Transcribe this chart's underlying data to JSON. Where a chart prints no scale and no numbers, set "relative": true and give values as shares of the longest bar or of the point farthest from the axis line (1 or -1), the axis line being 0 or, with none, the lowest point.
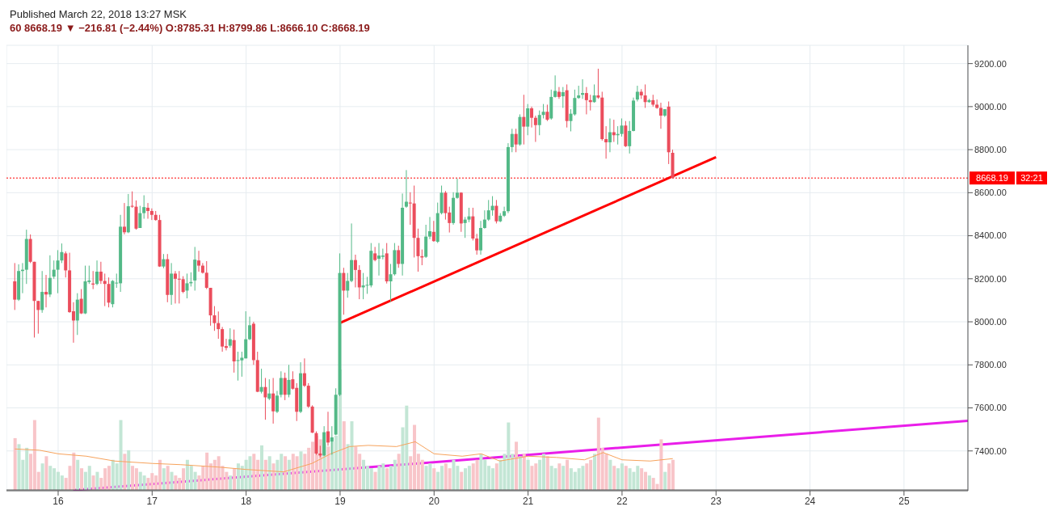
{
  "chart_data": [
    {
      "type": "candlestick",
      "title": "Published March 22, 2018 13:27 MSK",
      "subtitle": "60  8668.19 ▼ −216.81 (−2.44%) O:8785.31 H:8799.86 L:8666.10 C:8668.19",
      "x": [
        15.5417,
        15.5833,
        15.625,
        15.6667,
        15.7083,
        15.75,
        15.7917,
        15.8333,
        15.875,
        15.9167,
        15.9583,
        16.0,
        16.0417,
        16.0833,
        16.125,
        16.1667,
        16.2083,
        16.25,
        16.2917,
        16.3333,
        16.375,
        16.4167,
        16.4583,
        16.5,
        16.5417,
        16.5833,
        16.625,
        16.6667,
        16.7083,
        16.75,
        16.7917,
        16.8333,
        16.875,
        16.9167,
        16.9583,
        17.0,
        17.0417,
        17.0833,
        17.125,
        17.1667,
        17.2083,
        17.25,
        17.2917,
        17.3333,
        17.375,
        17.4167,
        17.4583,
        17.5,
        17.5417,
        17.5833,
        17.625,
        17.6667,
        17.7083,
        17.75,
        17.7917,
        17.8333,
        17.875,
        17.9167,
        17.9583,
        18.0,
        18.0417,
        18.0833,
        18.125,
        18.1667,
        18.2083,
        18.25,
        18.2917,
        18.3333,
        18.375,
        18.4167,
        18.4583,
        18.5,
        18.5417,
        18.5833,
        18.625,
        18.6667,
        18.7083,
        18.75,
        18.7917,
        18.8333,
        18.875,
        18.9167,
        18.9583,
        19.0,
        19.0417,
        19.0833,
        19.125,
        19.1667,
        19.2083,
        19.25,
        19.2917,
        19.3333,
        19.375,
        19.4167,
        19.4583,
        19.5,
        19.5417,
        19.5833,
        19.625,
        19.6667,
        19.7083,
        19.75,
        19.7917,
        19.8333,
        19.875,
        19.9167,
        19.9583,
        20.0,
        20.0417,
        20.0833,
        20.125,
        20.1667,
        20.2083,
        20.25,
        20.2917,
        20.3333,
        20.375,
        20.4167,
        20.4583,
        20.5,
        20.5417,
        20.5833,
        20.625,
        20.6667,
        20.7083,
        20.75,
        20.7917,
        20.8333,
        20.875,
        20.9167,
        20.9583,
        21.0,
        21.0417,
        21.0833,
        21.125,
        21.1667,
        21.2083,
        21.25,
        21.2917,
        21.3333,
        21.375,
        21.4167,
        21.4583,
        21.5,
        21.5417,
        21.5833,
        21.625,
        21.6667,
        21.7083,
        21.75,
        21.7917,
        21.8333,
        21.875,
        21.9167,
        21.9583,
        22.0,
        22.0417,
        22.0833,
        22.125,
        22.1667,
        22.2083,
        22.25,
        22.2917,
        22.3333,
        22.375,
        22.4167,
        22.4583,
        22.5,
        22.5417
      ],
      "ohlc": [
        [
          8188,
          8273,
          8055,
          8103
        ],
        [
          8103,
          8267,
          8097,
          8236
        ],
        [
          8236,
          8273,
          8133,
          8242
        ],
        [
          8242,
          8428,
          8176,
          8385
        ],
        [
          8385,
          8406,
          8273,
          8279
        ],
        [
          8279,
          8279,
          7927,
          8097
        ],
        [
          8097,
          8097,
          7945,
          8055
        ],
        [
          8055,
          8236,
          8042,
          8139
        ],
        [
          8139,
          8218,
          8067,
          8127
        ],
        [
          8127,
          8309,
          8115,
          8204
        ],
        [
          8210,
          8285,
          8200,
          8242
        ],
        [
          8242,
          8333,
          8133,
          8285
        ],
        [
          8285,
          8364,
          8273,
          8324
        ],
        [
          8318,
          8327,
          8206,
          8239
        ],
        [
          8239,
          8321,
          8042,
          8045
        ],
        [
          8049,
          8091,
          7903,
          8006
        ],
        [
          8006,
          8133,
          7939,
          8103
        ],
        [
          8107,
          8152,
          8036,
          8039
        ],
        [
          8039,
          8261,
          8036,
          8188
        ],
        [
          8185,
          8261,
          8176,
          8192
        ],
        [
          8178,
          8236,
          8152,
          8173
        ],
        [
          8176,
          8285,
          8170,
          8233
        ],
        [
          8233,
          8279,
          8176,
          8190
        ],
        [
          8190,
          8224,
          8073,
          8176
        ],
        [
          8176,
          8206,
          8067,
          8089
        ],
        [
          8082,
          8194,
          8067,
          8190
        ],
        [
          8179,
          8224,
          8158,
          8182
        ],
        [
          8179,
          8497,
          8139,
          8442
        ],
        [
          8442,
          8552,
          8406,
          8416
        ],
        [
          8416,
          8594,
          8412,
          8537
        ],
        [
          8539,
          8606,
          8530,
          8535
        ],
        [
          8535,
          8564,
          8428,
          8433
        ],
        [
          8436,
          8539,
          8436,
          8505
        ],
        [
          8505,
          8588,
          8479,
          8533
        ],
        [
          8530,
          8552,
          8479,
          8515
        ],
        [
          8515,
          8527,
          8473,
          8497
        ],
        [
          8497,
          8515,
          8470,
          8473
        ],
        [
          8473,
          8497,
          8255,
          8257
        ],
        [
          8257,
          8315,
          8249,
          8291
        ],
        [
          8291,
          8315,
          8091,
          8125
        ],
        [
          8125,
          8273,
          8079,
          8224
        ],
        [
          8224,
          8236,
          8085,
          8200
        ],
        [
          8200,
          8236,
          8085,
          8198
        ],
        [
          8198,
          8212,
          8133,
          8139
        ],
        [
          8145,
          8224,
          8109,
          8179
        ],
        [
          8179,
          8230,
          8164,
          8185
        ],
        [
          8192,
          8348,
          8145,
          8289
        ],
        [
          8285,
          8330,
          8233,
          8261
        ],
        [
          8261,
          8273,
          8224,
          8228
        ],
        [
          8228,
          8282,
          8152,
          8158
        ],
        [
          8158,
          8158,
          7982,
          8030
        ],
        [
          8030,
          8073,
          7958,
          7994
        ],
        [
          7994,
          8048,
          7921,
          7966
        ],
        [
          7966,
          7976,
          7861,
          7885
        ],
        [
          7887,
          7921,
          7867,
          7879
        ],
        [
          7889,
          7970,
          7879,
          7919
        ],
        [
          7915,
          7964,
          7764,
          7816
        ],
        [
          7818,
          7861,
          7727,
          7822
        ],
        [
          7821,
          7861,
          7745,
          7833
        ],
        [
          7830,
          8049,
          7830,
          7919
        ],
        [
          7919,
          8024,
          7915,
          7984
        ],
        [
          7991,
          8000,
          7800,
          7822
        ],
        [
          7822,
          7861,
          7673,
          7675
        ],
        [
          7675,
          7782,
          7667,
          7697
        ],
        [
          7697,
          7739,
          7545,
          7649
        ],
        [
          7643,
          7733,
          7636,
          7667
        ],
        [
          7667,
          7739,
          7527,
          7584
        ],
        [
          7582,
          7679,
          7576,
          7657
        ],
        [
          7661,
          7770,
          7649,
          7739
        ],
        [
          7739,
          7764,
          7636,
          7661
        ],
        [
          7661,
          7800,
          7649,
          7730
        ],
        [
          7733,
          7770,
          7685,
          7689
        ],
        [
          7693,
          7715,
          7539,
          7582
        ],
        [
          7582,
          7812,
          7576,
          7761
        ],
        [
          7761,
          7830,
          7697,
          7703
        ],
        [
          7703,
          7715,
          7600,
          7606
        ],
        [
          7606,
          7612,
          7483,
          7485
        ],
        [
          7483,
          7491,
          7382,
          7388
        ],
        [
          7388,
          7424,
          7370,
          7379
        ],
        [
          7379,
          7515,
          7376,
          7487
        ],
        [
          7491,
          7582,
          7424,
          7439
        ],
        [
          7443,
          7515,
          7382,
          7463
        ],
        [
          7476,
          7691,
          7473,
          7661
        ],
        [
          7661,
          8318,
          7655,
          8227
        ],
        [
          8227,
          8251,
          8033,
          8145
        ],
        [
          8145,
          8227,
          8112,
          8190
        ],
        [
          8190,
          8457,
          8184,
          8287
        ],
        [
          8287,
          8312,
          8160,
          8241
        ],
        [
          8241,
          8263,
          8105,
          8160
        ],
        [
          8160,
          8227,
          8105,
          8169
        ],
        [
          8169,
          8209,
          8130,
          8172
        ],
        [
          8169,
          8366,
          8160,
          8330
        ],
        [
          8318,
          8348,
          8281,
          8287
        ],
        [
          8293,
          8366,
          8215,
          8308
        ],
        [
          8302,
          8340,
          8290,
          8308
        ],
        [
          8318,
          8366,
          8178,
          8188
        ],
        [
          8188,
          8269,
          8093,
          8221
        ],
        [
          8221,
          8366,
          8215,
          8333
        ],
        [
          8333,
          8354,
          8251,
          8269
        ],
        [
          8269,
          8596,
          8215,
          8530
        ],
        [
          8535,
          8705,
          8530,
          8558
        ],
        [
          8554,
          8602,
          8451,
          8550
        ],
        [
          8550,
          8633,
          8299,
          8390
        ],
        [
          8390,
          8433,
          8233,
          8305
        ],
        [
          8305,
          8336,
          8263,
          8299
        ],
        [
          8302,
          8451,
          8297,
          8396
        ],
        [
          8396,
          8487,
          8384,
          8421
        ],
        [
          8418,
          8469,
          8372,
          8375
        ],
        [
          8372,
          8554,
          8366,
          8505
        ],
        [
          8505,
          8633,
          8499,
          8600
        ],
        [
          8600,
          8608,
          8475,
          8505
        ],
        [
          8508,
          8535,
          8415,
          8459
        ],
        [
          8459,
          8602,
          8451,
          8576
        ],
        [
          8576,
          8665,
          8572,
          8600
        ],
        [
          8600,
          8602,
          8418,
          8457
        ],
        [
          8459,
          8487,
          8390,
          8475
        ],
        [
          8475,
          8530,
          8463,
          8490
        ],
        [
          8490,
          8530,
          8378,
          8387
        ],
        [
          8387,
          8409,
          8312,
          8332
        ],
        [
          8332,
          8469,
          8312,
          8436
        ],
        [
          8436,
          8518,
          8433,
          8475
        ],
        [
          8475,
          8566,
          8469,
          8518
        ],
        [
          8518,
          8584,
          8493,
          8539
        ],
        [
          8539,
          8566,
          8457,
          8467
        ],
        [
          8467,
          8505,
          8463,
          8493
        ],
        [
          8493,
          8535,
          8487,
          8514
        ],
        [
          8514,
          8830,
          8505,
          8812
        ],
        [
          8812,
          8897,
          8788,
          8873
        ],
        [
          8873,
          8897,
          8788,
          8824
        ],
        [
          8824,
          8964,
          8818,
          8952
        ],
        [
          8952,
          9055,
          8824,
          8907
        ],
        [
          8907,
          9012,
          8867,
          8992
        ],
        [
          8992,
          9000,
          8903,
          8948
        ],
        [
          8948,
          8958,
          8836,
          8914
        ],
        [
          8914,
          8982,
          8867,
          8961
        ],
        [
          8961,
          9012,
          8945,
          8976
        ],
        [
          8976,
          9009,
          8933,
          8939
        ],
        [
          8945,
          9079,
          8939,
          9045
        ],
        [
          9045,
          9145,
          9042,
          9073
        ],
        [
          9069,
          9091,
          9036,
          9045
        ],
        [
          9048,
          9091,
          8994,
          9067
        ],
        [
          9076,
          9103,
          8903,
          8933
        ],
        [
          8933,
          8988,
          8885,
          8967
        ],
        [
          8964,
          9079,
          8958,
          9040
        ],
        [
          9040,
          9097,
          9036,
          9052
        ],
        [
          9055,
          9127,
          9036,
          9063
        ],
        [
          9063,
          9091,
          8964,
          9030
        ],
        [
          9030,
          9055,
          8982,
          9021
        ],
        [
          9021,
          9103,
          9018,
          9052
        ],
        [
          9052,
          9176,
          9036,
          9042
        ],
        [
          9042,
          9069,
          8842,
          8849
        ],
        [
          8849,
          8909,
          8758,
          8834
        ],
        [
          8834,
          8945,
          8788,
          8881
        ],
        [
          8881,
          8939,
          8836,
          8867
        ],
        [
          8867,
          8909,
          8824,
          8873
        ],
        [
          8873,
          8945,
          8861,
          8912
        ],
        [
          8912,
          8933,
          8812,
          8816
        ],
        [
          8816,
          8933,
          8782,
          8887
        ],
        [
          8887,
          9042,
          8885,
          9028
        ],
        [
          9033,
          9097,
          9024,
          9069
        ],
        [
          9069,
          9081,
          9036,
          9052
        ],
        [
          9052,
          9103,
          8994,
          9021
        ],
        [
          9021,
          9036,
          9018,
          9030
        ],
        [
          9030,
          9055,
          9000,
          9009
        ],
        [
          9009,
          9033,
          8990,
          8994
        ],
        [
          8994,
          9018,
          8897,
          8958
        ],
        [
          8958,
          8988,
          8952,
          8988
        ],
        [
          9000,
          9024,
          8733,
          8788
        ],
        [
          8785.31,
          8799.86,
          8666.1,
          8668.19
        ]
      ],
      "colors": [
        "#eb4d5c",
        "#53b987",
        "#53b987",
        "#53b987",
        "#eb4d5c",
        "#eb4d5c",
        "#eb4d5c",
        "#53b987",
        "#eb4d5c",
        "#53b987",
        "#53b987",
        "#53b987",
        "#53b987",
        "#eb4d5c",
        "#eb4d5c",
        "#eb4d5c",
        "#53b987",
        "#eb4d5c",
        "#53b987",
        "#53b987",
        "#eb4d5c",
        "#53b987",
        "#eb4d5c",
        "#eb4d5c",
        "#eb4d5c",
        "#53b987",
        "#53b987",
        "#53b987",
        "#eb4d5c",
        "#53b987",
        "#eb4d5c",
        "#eb4d5c",
        "#53b987",
        "#53b987",
        "#eb4d5c",
        "#eb4d5c",
        "#eb4d5c",
        "#eb4d5c",
        "#53b987",
        "#eb4d5c",
        "#53b987",
        "#eb4d5c",
        "#eb4d5c",
        "#eb4d5c",
        "#53b987",
        "#53b987",
        "#53b987",
        "#eb4d5c",
        "#eb4d5c",
        "#eb4d5c",
        "#eb4d5c",
        "#eb4d5c",
        "#eb4d5c",
        "#eb4d5c",
        "#eb4d5c",
        "#53b987",
        "#eb4d5c",
        "#53b987",
        "#53b987",
        "#53b987",
        "#53b987",
        "#eb4d5c",
        "#eb4d5c",
        "#53b987",
        "#eb4d5c",
        "#53b987",
        "#eb4d5c",
        "#53b987",
        "#53b987",
        "#eb4d5c",
        "#53b987",
        "#eb4d5c",
        "#eb4d5c",
        "#53b987",
        "#eb4d5c",
        "#eb4d5c",
        "#eb4d5c",
        "#eb4d5c",
        "#eb4d5c",
        "#53b987",
        "#eb4d5c",
        "#53b987",
        "#53b987",
        "#53b987",
        "#eb4d5c",
        "#53b987",
        "#53b987",
        "#eb4d5c",
        "#eb4d5c",
        "#53b987",
        "#53b987",
        "#53b987",
        "#eb4d5c",
        "#53b987",
        "#53b987",
        "#eb4d5c",
        "#53b987",
        "#53b987",
        "#eb4d5c",
        "#53b987",
        "#53b987",
        "#eb4d5c",
        "#eb4d5c",
        "#eb4d5c",
        "#eb4d5c",
        "#53b987",
        "#53b987",
        "#eb4d5c",
        "#53b987",
        "#53b987",
        "#eb4d5c",
        "#eb4d5c",
        "#53b987",
        "#53b987",
        "#eb4d5c",
        "#53b987",
        "#53b987",
        "#eb4d5c",
        "#eb4d5c",
        "#53b987",
        "#53b987",
        "#53b987",
        "#53b987",
        "#eb4d5c",
        "#53b987",
        "#53b987",
        "#53b987",
        "#53b987",
        "#eb4d5c",
        "#53b987",
        "#eb4d5c",
        "#53b987",
        "#eb4d5c",
        "#eb4d5c",
        "#53b987",
        "#53b987",
        "#eb4d5c",
        "#53b987",
        "#53b987",
        "#eb4d5c",
        "#53b987",
        "#eb4d5c",
        "#53b987",
        "#53b987",
        "#53b987",
        "#53b987",
        "#eb4d5c",
        "#eb4d5c",
        "#53b987",
        "#eb4d5c",
        "#eb4d5c",
        "#eb4d5c",
        "#53b987",
        "#eb4d5c",
        "#53b987",
        "#53b987",
        "#eb4d5c",
        "#53b987",
        "#53b987",
        "#53b987",
        "#eb4d5c",
        "#eb4d5c",
        "#53b987",
        "#eb4d5c",
        "#eb4d5c",
        "#eb4d5c",
        "#53b987",
        "#eb4d5c",
        "#eb4d5c"
      ],
      "series": [
        {
          "type": "line",
          "color": "#ff0000",
          "x": [
            19.0,
            23.0
          ],
          "values": [
            7995,
            8765
          ]
        },
        {
          "type": "line",
          "color": "#e91ee9",
          "x": [
            16.16,
            25.68
          ],
          "values": [
            7218,
            7540
          ]
        }
      ],
      "xlim": [
        15.45,
        25.68
      ],
      "xticks": [
        16,
        17,
        18,
        19,
        20,
        21,
        22,
        23,
        24,
        25
      ],
      "ylim": [
        7215,
        9285
      ],
      "yticks": [
        {
          "value": 7400,
          "label": "7400.00"
        },
        {
          "value": 7600,
          "label": "7600.00"
        },
        {
          "value": 7800,
          "label": "7800.00"
        },
        {
          "value": 8000,
          "label": "8000.00"
        },
        {
          "value": 8200,
          "label": "8200.00"
        },
        {
          "value": 8400,
          "label": "8400.00"
        },
        {
          "value": 8600,
          "label": "8600.00"
        },
        {
          "value": 8800,
          "label": "8800.00"
        },
        {
          "value": 9000,
          "label": "9000.00"
        },
        {
          "value": 9200,
          "label": "9200.00"
        }
      ],
      "ref_lines": [
        {
          "axis": "y",
          "value": 8668.19,
          "label": "8668.19",
          "color": "#ff0000",
          "line_style": "dotted"
        }
      ],
      "annotations": [
        "32:21"
      ],
      "grid": true,
      "marker": "none"
    },
    {
      "type": "bar",
      "relative": true,
      "xlim": [
        15.45,
        25.68
      ],
      "tick_labels": false,
      "x": [
        15.5417,
        15.5833,
        15.625,
        15.6667,
        15.7083,
        15.75,
        15.7917,
        15.8333,
        15.875,
        15.9167,
        15.9583,
        16.0,
        16.0417,
        16.0833,
        16.125,
        16.1667,
        16.2083,
        16.25,
        16.2917,
        16.3333,
        16.375,
        16.4167,
        16.4583,
        16.5,
        16.5417,
        16.5833,
        16.625,
        16.6667,
        16.7083,
        16.75,
        16.7917,
        16.8333,
        16.875,
        16.9167,
        16.9583,
        17.0,
        17.0417,
        17.0833,
        17.125,
        17.1667,
        17.2083,
        17.25,
        17.2917,
        17.3333,
        17.375,
        17.4167,
        17.4583,
        17.5,
        17.5417,
        17.5833,
        17.625,
        17.6667,
        17.7083,
        17.75,
        17.7917,
        17.8333,
        17.875,
        17.9167,
        17.9583,
        18.0,
        18.0417,
        18.0833,
        18.125,
        18.1667,
        18.2083,
        18.25,
        18.2917,
        18.3333,
        18.375,
        18.4167,
        18.4583,
        18.5,
        18.5417,
        18.5833,
        18.625,
        18.6667,
        18.7083,
        18.75,
        18.7917,
        18.8333,
        18.875,
        18.9167,
        18.9583,
        19.0,
        19.0417,
        19.0833,
        19.125,
        19.1667,
        19.2083,
        19.25,
        19.2917,
        19.3333,
        19.375,
        19.4167,
        19.4583,
        19.5,
        19.5417,
        19.5833,
        19.625,
        19.6667,
        19.7083,
        19.75,
        19.7917,
        19.8333,
        19.875,
        19.9167,
        19.9583,
        20.0,
        20.0417,
        20.0833,
        20.125,
        20.1667,
        20.2083,
        20.25,
        20.2917,
        20.3333,
        20.375,
        20.4167,
        20.4583,
        20.5,
        20.5417,
        20.5833,
        20.625,
        20.6667,
        20.7083,
        20.75,
        20.7917,
        20.8333,
        20.875,
        20.9167,
        20.9583,
        21.0,
        21.0417,
        21.0833,
        21.125,
        21.1667,
        21.2083,
        21.25,
        21.2917,
        21.3333,
        21.375,
        21.4167,
        21.4583,
        21.5,
        21.5417,
        21.5833,
        21.625,
        21.6667,
        21.7083,
        21.75,
        21.7917,
        21.8333,
        21.875,
        21.9167,
        21.9583,
        22.0,
        22.0417,
        22.0833,
        22.125,
        22.1667,
        22.2083,
        22.25,
        22.2917,
        22.3333,
        22.375,
        22.4167,
        22.4583,
        22.5,
        22.5417
      ],
      "series": [
        {
          "type": "bar",
          "colors": [
            "#f8c5c9",
            "#c3e6d5",
            "#c3e6d5",
            "#c3e6d5",
            "#f8c5c9",
            "#f8c5c9",
            "#f8c5c9",
            "#c3e6d5",
            "#f8c5c9",
            "#c3e6d5",
            "#c3e6d5",
            "#c3e6d5",
            "#c3e6d5",
            "#f8c5c9",
            "#f8c5c9",
            "#f8c5c9",
            "#c3e6d5",
            "#f8c5c9",
            "#c3e6d5",
            "#c3e6d5",
            "#f8c5c9",
            "#c3e6d5",
            "#f8c5c9",
            "#f8c5c9",
            "#f8c5c9",
            "#c3e6d5",
            "#c3e6d5",
            "#c3e6d5",
            "#f8c5c9",
            "#c3e6d5",
            "#f8c5c9",
            "#f8c5c9",
            "#c3e6d5",
            "#c3e6d5",
            "#f8c5c9",
            "#f8c5c9",
            "#f8c5c9",
            "#f8c5c9",
            "#c3e6d5",
            "#f8c5c9",
            "#c3e6d5",
            "#f8c5c9",
            "#f8c5c9",
            "#f8c5c9",
            "#c3e6d5",
            "#c3e6d5",
            "#c3e6d5",
            "#f8c5c9",
            "#f8c5c9",
            "#f8c5c9",
            "#f8c5c9",
            "#f8c5c9",
            "#f8c5c9",
            "#f8c5c9",
            "#f8c5c9",
            "#c3e6d5",
            "#f8c5c9",
            "#c3e6d5",
            "#c3e6d5",
            "#c3e6d5",
            "#c3e6d5",
            "#f8c5c9",
            "#f8c5c9",
            "#c3e6d5",
            "#f8c5c9",
            "#c3e6d5",
            "#f8c5c9",
            "#c3e6d5",
            "#c3e6d5",
            "#f8c5c9",
            "#c3e6d5",
            "#f8c5c9",
            "#f8c5c9",
            "#c3e6d5",
            "#f8c5c9",
            "#f8c5c9",
            "#f8c5c9",
            "#f8c5c9",
            "#f8c5c9",
            "#c3e6d5",
            "#f8c5c9",
            "#c3e6d5",
            "#c3e6d5",
            "#c3e6d5",
            "#f8c5c9",
            "#c3e6d5",
            "#c3e6d5",
            "#f8c5c9",
            "#f8c5c9",
            "#c3e6d5",
            "#c3e6d5",
            "#c3e6d5",
            "#f8c5c9",
            "#c3e6d5",
            "#c3e6d5",
            "#f8c5c9",
            "#c3e6d5",
            "#c3e6d5",
            "#f8c5c9",
            "#c3e6d5",
            "#c3e6d5",
            "#f8c5c9",
            "#f8c5c9",
            "#f8c5c9",
            "#f8c5c9",
            "#c3e6d5",
            "#c3e6d5",
            "#f8c5c9",
            "#c3e6d5",
            "#c3e6d5",
            "#f8c5c9",
            "#f8c5c9",
            "#c3e6d5",
            "#c3e6d5",
            "#f8c5c9",
            "#c3e6d5",
            "#c3e6d5",
            "#f8c5c9",
            "#f8c5c9",
            "#c3e6d5",
            "#c3e6d5",
            "#c3e6d5",
            "#c3e6d5",
            "#f8c5c9",
            "#c3e6d5",
            "#c3e6d5",
            "#c3e6d5",
            "#c3e6d5",
            "#f8c5c9",
            "#c3e6d5",
            "#f8c5c9",
            "#c3e6d5",
            "#f8c5c9",
            "#f8c5c9",
            "#c3e6d5",
            "#c3e6d5",
            "#f8c5c9",
            "#c3e6d5",
            "#c3e6d5",
            "#f8c5c9",
            "#c3e6d5",
            "#f8c5c9",
            "#c3e6d5",
            "#c3e6d5",
            "#c3e6d5",
            "#c3e6d5",
            "#f8c5c9",
            "#f8c5c9",
            "#c3e6d5",
            "#f8c5c9",
            "#f8c5c9",
            "#f8c5c9",
            "#c3e6d5",
            "#f8c5c9",
            "#c3e6d5",
            "#c3e6d5",
            "#f8c5c9",
            "#c3e6d5",
            "#c3e6d5",
            "#c3e6d5",
            "#f8c5c9",
            "#f8c5c9",
            "#c3e6d5",
            "#f8c5c9",
            "#f8c5c9",
            "#f8c5c9",
            "#c3e6d5",
            "#f8c5c9",
            "#f8c5c9"
          ],
          "values": [
            0.43,
            0.38,
            0.25,
            0.35,
            0.3,
            0.58,
            0.15,
            0.22,
            0.28,
            0.2,
            0.18,
            0.15,
            0.12,
            0.1,
            0.2,
            0.31,
            0.25,
            0.18,
            0.15,
            0.2,
            0.12,
            0.15,
            0.1,
            0.18,
            0.2,
            0.25,
            0.22,
            0.58,
            0.3,
            0.33,
            0.2,
            0.18,
            0.15,
            0.12,
            0.1,
            0.14,
            0.12,
            0.25,
            0.18,
            0.2,
            0.15,
            0.12,
            0.1,
            0.18,
            0.25,
            0.2,
            0.15,
            0.12,
            0.2,
            0.31,
            0.22,
            0.25,
            0.28,
            0.2,
            0.15,
            0.12,
            0.18,
            0.22,
            0.2,
            0.25,
            0.28,
            0.3,
            0.25,
            0.37,
            0.25,
            0.28,
            0.22,
            0.25,
            0.3,
            0.28,
            0.25,
            0.3,
            0.28,
            0.32,
            0.3,
            0.35,
            0.4,
            0.45,
            0.42,
            0.38,
            0.36,
            0.4,
            0.45,
            1.0,
            0.57,
            0.38,
            0.57,
            0.36,
            0.3,
            0.25,
            0.2,
            0.18,
            0.15,
            0.2,
            0.22,
            0.18,
            0.2,
            0.25,
            0.3,
            0.52,
            0.7,
            0.28,
            0.54,
            0.3,
            0.25,
            0.2,
            0.22,
            0.18,
            0.15,
            0.2,
            0.22,
            0.18,
            0.25,
            0.2,
            0.15,
            0.18,
            0.2,
            0.22,
            0.25,
            0.3,
            0.25,
            0.2,
            0.18,
            0.22,
            0.25,
            0.3,
            0.56,
            0.3,
            0.4,
            0.28,
            0.3,
            0.25,
            0.2,
            0.22,
            0.25,
            0.3,
            0.28,
            0.2,
            0.18,
            0.22,
            0.2,
            0.25,
            0.18,
            0.15,
            0.18,
            0.2,
            0.22,
            0.25,
            0.3,
            0.6,
            0.35,
            0.3,
            0.25,
            0.2,
            0.18,
            0.22,
            0.2,
            0.18,
            0.15,
            0.2,
            0.18,
            0.15,
            0.12,
            0.1,
            0.05,
            0.42,
            0.15,
            0.22,
            0.25
          ]
        },
        {
          "type": "line",
          "color": "#f7a35c",
          "x": [
            15.54,
            15.8,
            16.0,
            16.3,
            16.6,
            17.0,
            17.3,
            17.7,
            18.0,
            18.4,
            18.7,
            18.9,
            19.1,
            19.3,
            19.6,
            19.8,
            20.0,
            20.3,
            20.5,
            20.7,
            21.0,
            21.3,
            21.6,
            21.8,
            22.0,
            22.3,
            22.54
          ],
          "values": [
            0.34,
            0.33,
            0.3,
            0.28,
            0.24,
            0.22,
            0.21,
            0.19,
            0.17,
            0.15,
            0.22,
            0.3,
            0.36,
            0.37,
            0.36,
            0.4,
            0.3,
            0.28,
            0.3,
            0.24,
            0.28,
            0.27,
            0.25,
            0.31,
            0.25,
            0.24,
            0.26
          ]
        }
      ]
    }
  ]
}
